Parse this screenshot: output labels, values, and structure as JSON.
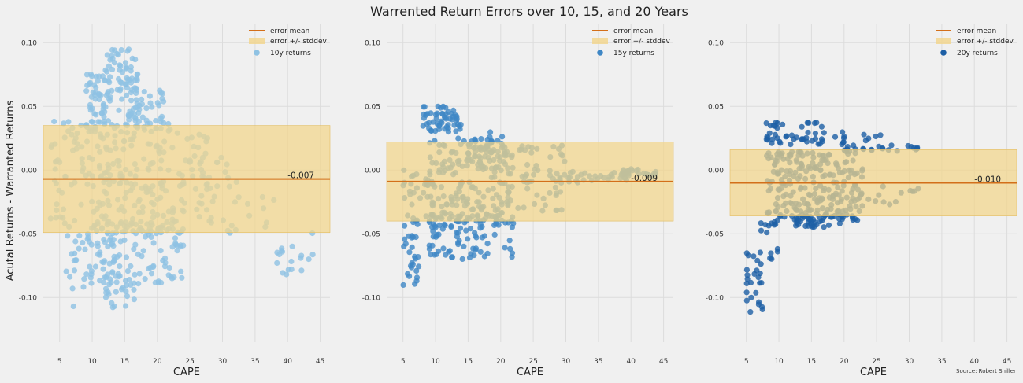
{
  "title": "Warrented Return Errors over 10, 15, and 20 Years",
  "source": "Source: Robert Shiller",
  "colors": {
    "background": "#f0f0f0",
    "grid": "#dcdcdc",
    "mean_line": "#d36f1a",
    "band": "#f2d58a"
  },
  "chart_data": [
    {
      "type": "scatter",
      "xlabel": "CAPE",
      "ylabel": "Acutal Returns - Warranted Returns",
      "xlim": [
        2.5,
        46.5
      ],
      "ylim": [
        -0.135,
        0.115
      ],
      "xticks": [
        5,
        10,
        15,
        20,
        25,
        30,
        35,
        40,
        45
      ],
      "yticks": [
        -0.1,
        -0.05,
        0.0,
        0.05,
        0.1
      ],
      "ytick_labels": [
        "-0.10",
        "-0.05",
        "0.00",
        "0.05",
        "0.10"
      ],
      "legend": [
        "error mean",
        "error +/- stddev",
        "10y returns"
      ],
      "legend_position": "top-right",
      "grid": true,
      "mean": -0.007,
      "stddev": 0.042,
      "mean_label": "-0.007",
      "series": [
        {
          "name": "10y returns",
          "color": "#8fc2e3",
          "clusters": [
            {
              "x": [
                3.5,
                6
              ],
              "y": [
                -0.05,
                0.04
              ],
              "n": 25
            },
            {
              "x": [
                6,
                10
              ],
              "y": [
                -0.09,
                0.04
              ],
              "n": 40
            },
            {
              "x": [
                6.5,
                9
              ],
              "y": [
                -0.115,
                -0.07
              ],
              "n": 8
            },
            {
              "x": [
                9,
                13
              ],
              "y": [
                0.03,
                0.08
              ],
              "n": 55
            },
            {
              "x": [
                10,
                22
              ],
              "y": [
                -0.05,
                0.04
              ],
              "n": 170
            },
            {
              "x": [
                12,
                17
              ],
              "y": [
                0.04,
                0.095
              ],
              "n": 65
            },
            {
              "x": [
                15,
                21
              ],
              "y": [
                0.03,
                0.065
              ],
              "n": 40
            },
            {
              "x": [
                9,
                24
              ],
              "y": [
                -0.09,
                -0.04
              ],
              "n": 130
            },
            {
              "x": [
                12,
                17
              ],
              "y": [
                -0.108,
                -0.08
              ],
              "n": 25
            },
            {
              "x": [
                22,
                28
              ],
              "y": [
                -0.04,
                0.03
              ],
              "n": 40
            },
            {
              "x": [
                26,
                33
              ],
              "y": [
                -0.045,
                0.01
              ],
              "n": 25
            },
            {
              "x": [
                28,
                38
              ],
              "y": [
                -0.05,
                -0.02
              ],
              "n": 14
            },
            {
              "x": [
                37,
                44
              ],
              "y": [
                -0.082,
                -0.048
              ],
              "n": 18
            }
          ]
        }
      ]
    },
    {
      "type": "scatter",
      "xlabel": "CAPE",
      "ylabel": "",
      "xlim": [
        2.5,
        46.5
      ],
      "ylim": [
        -0.135,
        0.115
      ],
      "xticks": [
        5,
        10,
        15,
        20,
        25,
        30,
        35,
        40,
        45
      ],
      "yticks": [
        -0.1,
        -0.05,
        0.0,
        0.05,
        0.1
      ],
      "ytick_labels": [
        "-0.10",
        "-0.05",
        "0.00",
        "0.05",
        "0.10"
      ],
      "legend": [
        "error mean",
        "error +/- stddev",
        "15y returns"
      ],
      "legend_position": "top-right",
      "grid": true,
      "mean": -0.009,
      "stddev": 0.031,
      "mean_label": "-0.009",
      "series": [
        {
          "name": "15y returns",
          "color": "#3f87c5",
          "clusters": [
            {
              "x": [
                5,
                7.5
              ],
              "y": [
                -0.092,
                -0.05
              ],
              "n": 25
            },
            {
              "x": [
                5,
                9
              ],
              "y": [
                -0.045,
                0.0
              ],
              "n": 30
            },
            {
              "x": [
                8,
                14
              ],
              "y": [
                0.03,
                0.05
              ],
              "n": 55
            },
            {
              "x": [
                9,
                22
              ],
              "y": [
                -0.045,
                0.025
              ],
              "n": 200
            },
            {
              "x": [
                9,
                22
              ],
              "y": [
                -0.07,
                -0.035
              ],
              "n": 80
            },
            {
              "x": [
                15,
                21
              ],
              "y": [
                0.0,
                0.03
              ],
              "n": 40
            },
            {
              "x": [
                22,
                30
              ],
              "y": [
                -0.035,
                0.02
              ],
              "n": 50
            },
            {
              "x": [
                28,
                40
              ],
              "y": [
                -0.01,
                0.0
              ],
              "n": 35
            },
            {
              "x": [
                38,
                44
              ],
              "y": [
                -0.005,
                0.001
              ],
              "n": 18
            }
          ]
        }
      ]
    },
    {
      "type": "scatter",
      "xlabel": "CAPE",
      "ylabel": "",
      "xlim": [
        2.5,
        46.5
      ],
      "ylim": [
        -0.135,
        0.115
      ],
      "xticks": [
        5,
        10,
        15,
        20,
        25,
        30,
        35,
        40,
        45
      ],
      "yticks": [
        -0.1,
        -0.05,
        0.0,
        0.05,
        0.1
      ],
      "ytick_labels": [
        "-0.10",
        "-0.05",
        "0.00",
        "0.05",
        "0.10"
      ],
      "legend": [
        "error mean",
        "error +/- stddev",
        "20y returns"
      ],
      "legend_position": "top-right",
      "grid": true,
      "mean": -0.01,
      "stddev": 0.026,
      "mean_label": "-0.010",
      "series": [
        {
          "name": "20y returns",
          "color": "#1d5fa5",
          "clusters": [
            {
              "x": [
                5,
                7.5
              ],
              "y": [
                -0.112,
                -0.06
              ],
              "n": 25
            },
            {
              "x": [
                7,
                10
              ],
              "y": [
                -0.07,
                -0.04
              ],
              "n": 15
            },
            {
              "x": [
                8,
                17
              ],
              "y": [
                0.02,
                0.038
              ],
              "n": 45
            },
            {
              "x": [
                8,
                23
              ],
              "y": [
                -0.04,
                0.015
              ],
              "n": 220
            },
            {
              "x": [
                12,
                20
              ],
              "y": [
                -0.045,
                -0.03
              ],
              "n": 40
            },
            {
              "x": [
                18,
                26
              ],
              "y": [
                0.015,
                0.03
              ],
              "n": 20
            },
            {
              "x": [
                22,
                32
              ],
              "y": [
                -0.028,
                -0.01
              ],
              "n": 15
            },
            {
              "x": [
                24,
                32
              ],
              "y": [
                0.015,
                0.02
              ],
              "n": 14
            }
          ]
        }
      ]
    }
  ]
}
